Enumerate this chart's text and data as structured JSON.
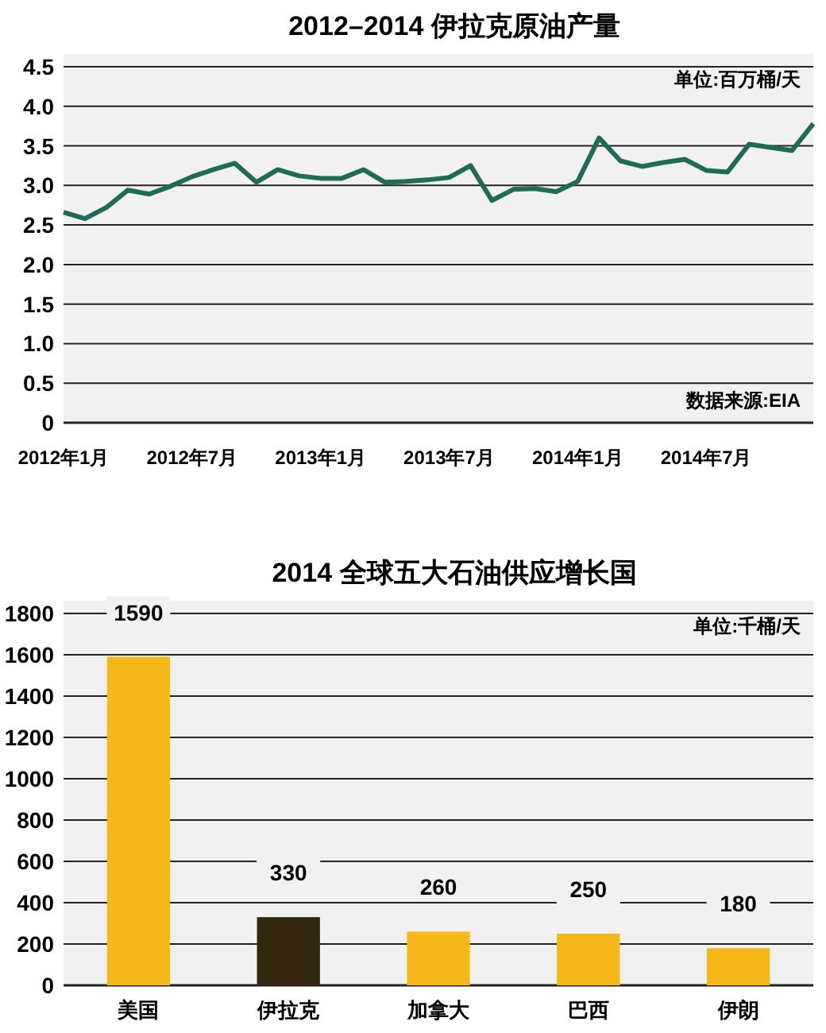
{
  "chart_data": [
    {
      "type": "line",
      "title": "2012–2014 伊拉克原油产量",
      "x": [
        "2012-01",
        "2012-02",
        "2012-03",
        "2012-04",
        "2012-05",
        "2012-06",
        "2012-07",
        "2012-08",
        "2012-09",
        "2012-10",
        "2012-11",
        "2012-12",
        "2013-01",
        "2013-02",
        "2013-03",
        "2013-04",
        "2013-05",
        "2013-06",
        "2013-07",
        "2013-08",
        "2013-09",
        "2013-10",
        "2013-11",
        "2013-12",
        "2014-01",
        "2014-02",
        "2014-03",
        "2014-04",
        "2014-05",
        "2014-06",
        "2014-07",
        "2014-08",
        "2014-09",
        "2014-10",
        "2014-11",
        "2014-12"
      ],
      "series": [
        {
          "color": "#1e6b58",
          "values": [
            2.66,
            2.58,
            2.72,
            2.94,
            2.89,
            2.99,
            3.11,
            3.2,
            3.28,
            3.04,
            3.2,
            3.12,
            3.09,
            3.09,
            3.2,
            3.04,
            3.05,
            3.07,
            3.1,
            3.25,
            2.81,
            2.95,
            2.96,
            2.92,
            3.05,
            3.6,
            3.31,
            3.24,
            3.29,
            3.33,
            3.19,
            3.17,
            3.52,
            3.48,
            3.44,
            3.78
          ]
        }
      ],
      "xlim": [
        "2012-01",
        "2014-12"
      ],
      "xticks": [
        {
          "value": "2012-01",
          "label": "2012年1月"
        },
        {
          "value": "2012-07",
          "label": "2012年7月"
        },
        {
          "value": "2013-01",
          "label": "2013年1月"
        },
        {
          "value": "2013-07",
          "label": "2013年7月"
        },
        {
          "value": "2014-01",
          "label": "2014年1月"
        },
        {
          "value": "2014-07",
          "label": "2014年7月"
        }
      ],
      "ylim": [
        0,
        4.5
      ],
      "yticks": [
        0,
        0.5,
        {
          "value": 1,
          "label": "1.0"
        },
        1.5,
        {
          "value": 2,
          "label": "2.0"
        },
        2.5,
        {
          "value": 3,
          "label": "3.0"
        },
        3.5,
        {
          "value": 4,
          "label": "4.0"
        },
        4.5
      ],
      "grid": "y",
      "marker": "none",
      "line_style": "solid",
      "annotations": [
        "单位:百万桶/天",
        "数据来源:EIA"
      ]
    },
    {
      "type": "bar",
      "title": "2014 全球五大石油供应增长国",
      "categories": [
        "美国",
        "伊拉克",
        "加拿大",
        "巴西",
        "伊朗"
      ],
      "values": [
        1590,
        330,
        260,
        250,
        180
      ],
      "colors": [
        "#f6b818",
        "#35260f",
        "#f6b818",
        "#f6b818",
        "#f6b818"
      ],
      "ylim": [
        0,
        1800
      ],
      "yticks": [
        0,
        200,
        400,
        600,
        800,
        1000,
        1200,
        1400,
        1600,
        1800
      ],
      "grid": "y",
      "data_labels": true,
      "annotations": [
        "单位:千桶/天"
      ]
    }
  ]
}
